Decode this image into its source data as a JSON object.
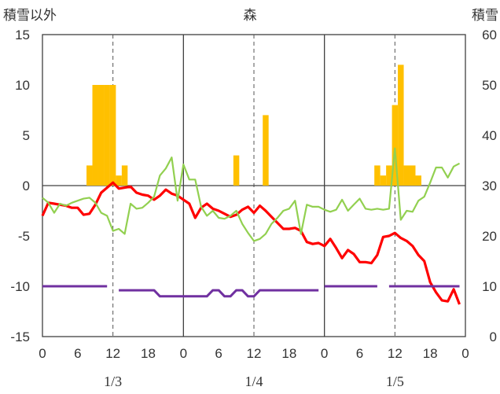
{
  "chart_data": {
    "type": "bar+line",
    "title": "森",
    "left_axis_label": "積雪以外",
    "right_axis_label": "積雪",
    "left_ylim": [
      -15,
      15
    ],
    "left_yticks": [
      15,
      10,
      5,
      0,
      -5,
      -10,
      -15
    ],
    "right_ylim": [
      0,
      60
    ],
    "right_yticks": [
      60,
      50,
      40,
      30,
      20,
      10,
      0
    ],
    "xlim": [
      0,
      72
    ],
    "x_tick_labels": [
      "0",
      "6",
      "12",
      "18",
      "0",
      "6",
      "12",
      "18",
      "0",
      "6",
      "12",
      "18",
      "0"
    ],
    "x_tick_hours": [
      0,
      6,
      12,
      18,
      24,
      30,
      36,
      42,
      48,
      54,
      60,
      66,
      72
    ],
    "date_labels": [
      {
        "label": "1/3",
        "hour": 12
      },
      {
        "label": "1/4",
        "hour": 36
      },
      {
        "label": "1/5",
        "hour": 60
      }
    ],
    "grid": {
      "solid_at_hours": [
        24,
        48
      ],
      "dashed_at_hours": [
        12,
        36,
        60
      ],
      "zero_line": true
    },
    "series": [
      {
        "axis": "right",
        "kind": "bar",
        "color": "#FFC000",
        "bars": [
          {
            "hour": 8,
            "value": 34
          },
          {
            "hour": 9,
            "value": 50
          },
          {
            "hour": 10,
            "value": 50
          },
          {
            "hour": 11,
            "value": 50
          },
          {
            "hour": 12,
            "value": 50
          },
          {
            "hour": 13,
            "value": 32
          },
          {
            "hour": 14,
            "value": 34
          },
          {
            "hour": 33,
            "value": 36
          },
          {
            "hour": 38,
            "value": 44
          },
          {
            "hour": 57,
            "value": 34
          },
          {
            "hour": 58,
            "value": 32
          },
          {
            "hour": 59,
            "value": 34
          },
          {
            "hour": 60,
            "value": 46
          },
          {
            "hour": 61,
            "value": 54
          },
          {
            "hour": 62,
            "value": 34
          },
          {
            "hour": 63,
            "value": 34
          },
          {
            "hour": 64,
            "value": 32
          }
        ]
      },
      {
        "axis": "left",
        "kind": "line",
        "color": "#FF0000",
        "x": [
          0,
          1,
          2,
          3,
          4,
          5,
          6,
          7,
          8,
          9,
          10,
          11,
          12,
          13,
          14,
          15,
          16,
          17,
          18,
          19,
          20,
          21,
          22,
          23,
          24,
          25,
          26,
          27,
          28,
          29,
          30,
          31,
          32,
          33,
          34,
          35,
          36,
          37,
          38,
          39,
          40,
          41,
          42,
          43,
          44,
          45,
          46,
          47,
          48,
          49,
          50,
          51,
          52,
          53,
          54,
          55,
          56,
          57,
          58,
          59,
          60,
          61,
          62,
          63,
          64,
          65,
          66,
          67,
          68,
          69,
          70,
          71
        ],
        "y": [
          -3.0,
          -1.7,
          -1.8,
          -1.9,
          -2.0,
          -2.2,
          -2.2,
          -2.9,
          -2.8,
          -1.9,
          -0.7,
          -0.2,
          0.3,
          -0.3,
          -0.2,
          -0.1,
          -0.7,
          -0.9,
          -1.0,
          -1.4,
          -1.0,
          -0.4,
          -0.8,
          -1.0,
          -1.4,
          -1.8,
          -3.2,
          -2.2,
          -1.8,
          -2.3,
          -2.5,
          -2.8,
          -3.1,
          -2.9,
          -2.4,
          -2.1,
          -2.7,
          -2.0,
          -2.5,
          -3.1,
          -3.7,
          -4.3,
          -4.3,
          -4.2,
          -4.5,
          -5.6,
          -5.8,
          -5.7,
          -6.0,
          -5.3,
          -6.2,
          -7.2,
          -6.4,
          -6.8,
          -7.6,
          -7.6,
          -7.7,
          -6.9,
          -5.1,
          -5.0,
          -4.7,
          -5.2,
          -5.5,
          -6.0,
          -6.9,
          -7.5,
          -9.6,
          -10.6,
          -11.4,
          -11.5,
          -10.3,
          -11.8
        ]
      },
      {
        "axis": "left",
        "kind": "line",
        "color": "#92D050",
        "x": [
          0,
          1,
          2,
          3,
          4,
          5,
          6,
          7,
          8,
          9,
          10,
          11,
          12,
          13,
          14,
          15,
          16,
          17,
          18,
          19,
          20,
          21,
          22,
          23,
          24,
          25,
          26,
          27,
          28,
          29,
          30,
          31,
          32,
          33,
          34,
          35,
          36,
          37,
          38,
          39,
          40,
          41,
          42,
          43,
          44,
          45,
          46,
          47,
          48,
          49,
          50,
          51,
          52,
          53,
          54,
          55,
          56,
          57,
          58,
          59,
          60,
          61,
          62,
          63,
          64,
          65,
          66,
          67,
          68,
          69,
          70,
          71
        ],
        "y": [
          -1.2,
          -1.7,
          -2.7,
          -1.8,
          -2.0,
          -1.7,
          -1.5,
          -1.3,
          -1.2,
          -1.7,
          -2.7,
          -3.0,
          -4.5,
          -4.3,
          -4.8,
          -1.8,
          -2.3,
          -2.2,
          -1.7,
          -1.1,
          1.0,
          1.7,
          2.8,
          -1.5,
          2.1,
          0.6,
          0.6,
          -2.1,
          -3.0,
          -2.5,
          -3.2,
          -3.3,
          -3.0,
          -2.5,
          -3.8,
          -4.7,
          -5.5,
          -5.3,
          -4.8,
          -3.8,
          -3.2,
          -2.5,
          -2.3,
          -1.5,
          -4.8,
          -1.9,
          -2.1,
          -2.1,
          -2.4,
          -2.6,
          -2.4,
          -1.4,
          -2.5,
          -1.9,
          -1.3,
          -2.3,
          -2.4,
          -2.3,
          -2.4,
          -2.3,
          3.7,
          -3.4,
          -2.5,
          -2.6,
          -1.5,
          -1.1,
          0.3,
          1.8,
          1.8,
          0.8,
          1.9,
          2.2
        ]
      },
      {
        "axis": "left",
        "kind": "line",
        "color": "#7030A0",
        "segments": [
          {
            "x": [
              0,
              1,
              2,
              3,
              4,
              5,
              6,
              7,
              8,
              9,
              10,
              11
            ],
            "y": [
              -10,
              -10,
              -10,
              -10,
              -10,
              -10,
              -10,
              -10,
              -10,
              -10,
              -10,
              -10
            ]
          },
          {
            "x": [
              13,
              14,
              15,
              16,
              17,
              18,
              19,
              20,
              21,
              22,
              23,
              24,
              25,
              26,
              27,
              28,
              29,
              30,
              31,
              32,
              33,
              34,
              35,
              36,
              37,
              38,
              39,
              40,
              41,
              42,
              43,
              44,
              45,
              46,
              47
            ],
            "y": [
              -10.4,
              -10.4,
              -10.4,
              -10.4,
              -10.4,
              -10.4,
              -10.4,
              -11.0,
              -11.0,
              -11.0,
              -11.0,
              -11.0,
              -11.0,
              -11.0,
              -11.0,
              -11.0,
              -10.4,
              -10.4,
              -11.0,
              -11.0,
              -10.4,
              -10.4,
              -11.0,
              -11.0,
              -10.4,
              -10.4,
              -10.4,
              -10.4,
              -10.4,
              -10.4,
              -10.4,
              -10.4,
              -10.4,
              -10.4,
              -10.4
            ]
          },
          {
            "x": [
              48,
              49,
              50,
              51,
              52,
              53,
              54,
              55,
              56,
              57
            ],
            "y": [
              -10,
              -10,
              -10,
              -10,
              -10,
              -10,
              -10,
              -10,
              -10,
              -10
            ]
          },
          {
            "x": [
              59,
              60,
              61,
              62,
              63,
              64,
              65,
              66,
              67,
              68,
              69,
              70,
              71
            ],
            "y": [
              -10,
              -10,
              -10,
              -10,
              -10,
              -10,
              -10,
              -10,
              -10,
              -10,
              -10,
              -10,
              -10
            ]
          }
        ]
      }
    ]
  }
}
